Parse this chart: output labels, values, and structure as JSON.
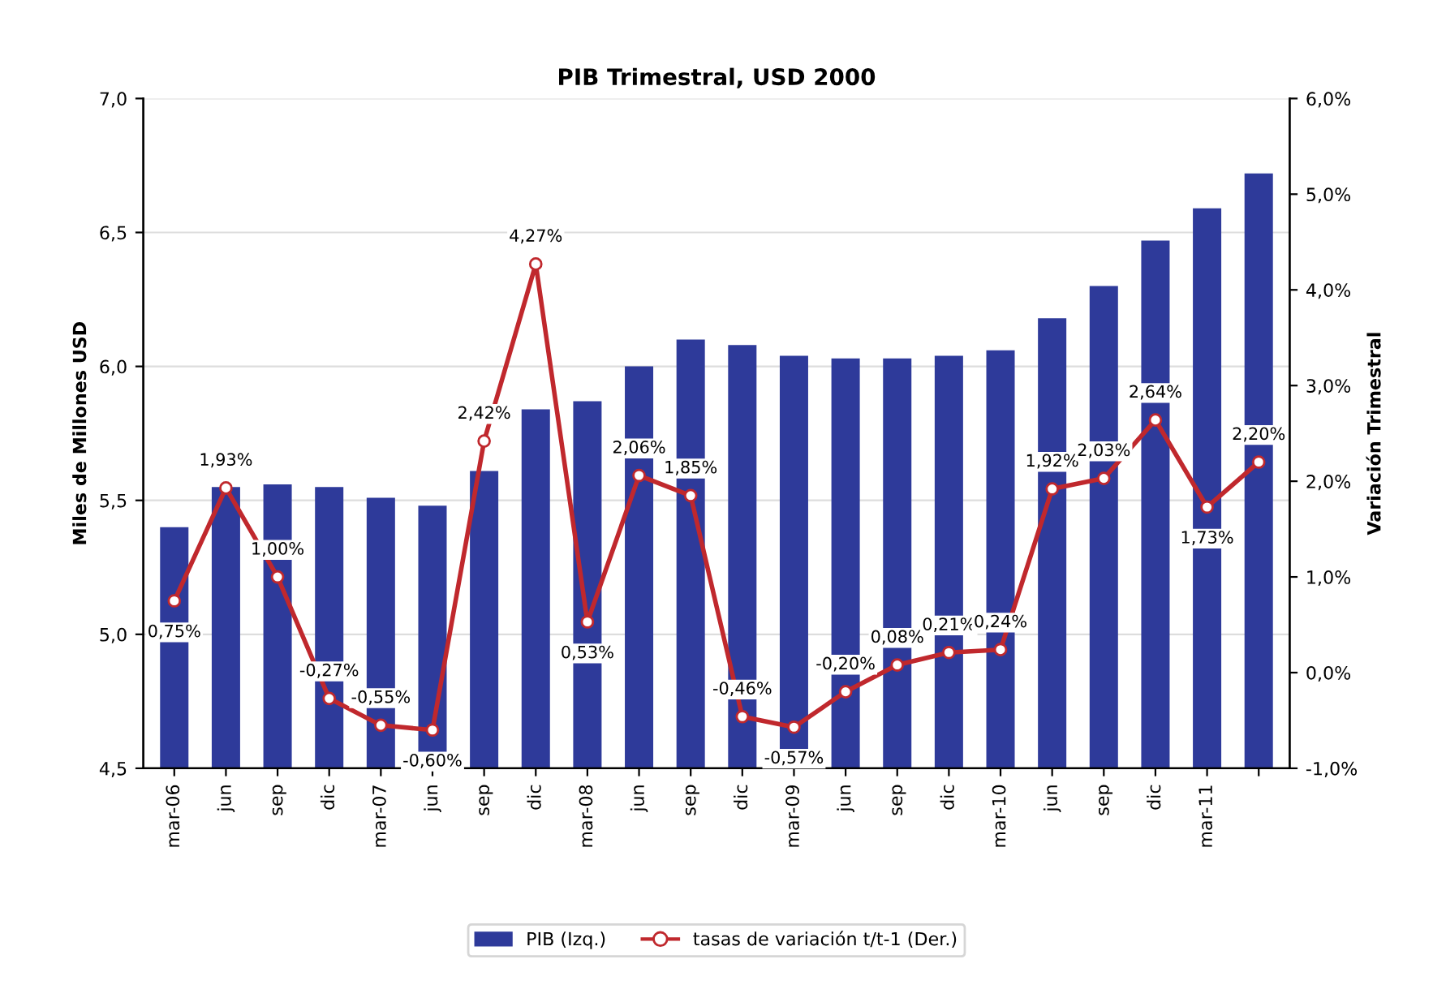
{
  "chart_data": {
    "type": "bar",
    "title": "PIB Trimestral, USD 2000",
    "ylabel": "Miles de Millones USD",
    "y2label": "Variación Trimestral",
    "categories": [
      "mar-06",
      "jun",
      "sep",
      "dic",
      "mar-07",
      "jun",
      "sep",
      "dic",
      "mar-08",
      "jun",
      "sep",
      "dic",
      "mar-09",
      "jun",
      "sep",
      "dic",
      "mar-10",
      "jun",
      "sep",
      "dic",
      "mar-11",
      null
    ],
    "series": [
      {
        "name": "PIB (Izq.)",
        "type": "bar",
        "color": "#2e3a9a",
        "values": [
          5.4,
          5.55,
          5.56,
          5.55,
          5.51,
          5.48,
          5.61,
          5.84,
          5.87,
          6.0,
          6.1,
          6.08,
          6.04,
          6.03,
          6.03,
          6.04,
          6.06,
          6.18,
          6.3,
          6.47,
          6.59,
          6.72
        ]
      },
      {
        "name": "tasas de variación t/t-1 (Der.)",
        "type": "line",
        "axis": "y2",
        "color": "#c0282d",
        "marker": "circle",
        "values": [
          0.75,
          1.93,
          1.0,
          -0.27,
          -0.55,
          -0.6,
          2.42,
          4.27,
          0.53,
          2.06,
          1.85,
          -0.46,
          -0.57,
          -0.2,
          0.08,
          0.21,
          0.24,
          1.92,
          2.03,
          2.64,
          1.73,
          2.2
        ],
        "value_labels": [
          "0,75%",
          "1,93%",
          "1,00%",
          "-0,27%",
          "-0,55%",
          "-0,60%",
          "2,42%",
          "4,27%",
          "0,53%",
          "2,06%",
          "1,85%",
          "-0,46%",
          "-0,57%",
          "-0,20%",
          "0,08%",
          "0,21%",
          "0,24%",
          "1,92%",
          "2,03%",
          "2,64%",
          "1,73%",
          "2,20%"
        ]
      }
    ],
    "ylim": [
      4.5,
      7.0
    ],
    "yticks": [
      {
        "value": 4.5,
        "label": "4,5"
      },
      {
        "value": 5.0,
        "label": "5,0"
      },
      {
        "value": 5.5,
        "label": "5,5"
      },
      {
        "value": 6.0,
        "label": "6,0"
      },
      {
        "value": 6.5,
        "label": "6,5"
      },
      {
        "value": 7.0,
        "label": "7,0"
      }
    ],
    "y2lim": [
      -1.0,
      6.0
    ],
    "y2ticks": [
      {
        "value": -1.0,
        "label": "-1,0%"
      },
      {
        "value": 0.0,
        "label": "0,0%"
      },
      {
        "value": 1.0,
        "label": "1,0%"
      },
      {
        "value": 2.0,
        "label": "2,0%"
      },
      {
        "value": 3.0,
        "label": "3,0%"
      },
      {
        "value": 4.0,
        "label": "4,0%"
      },
      {
        "value": 5.0,
        "label": "5,0%"
      },
      {
        "value": 6.0,
        "label": "6,0%"
      }
    ],
    "grid": "y",
    "legend": "bottom"
  }
}
